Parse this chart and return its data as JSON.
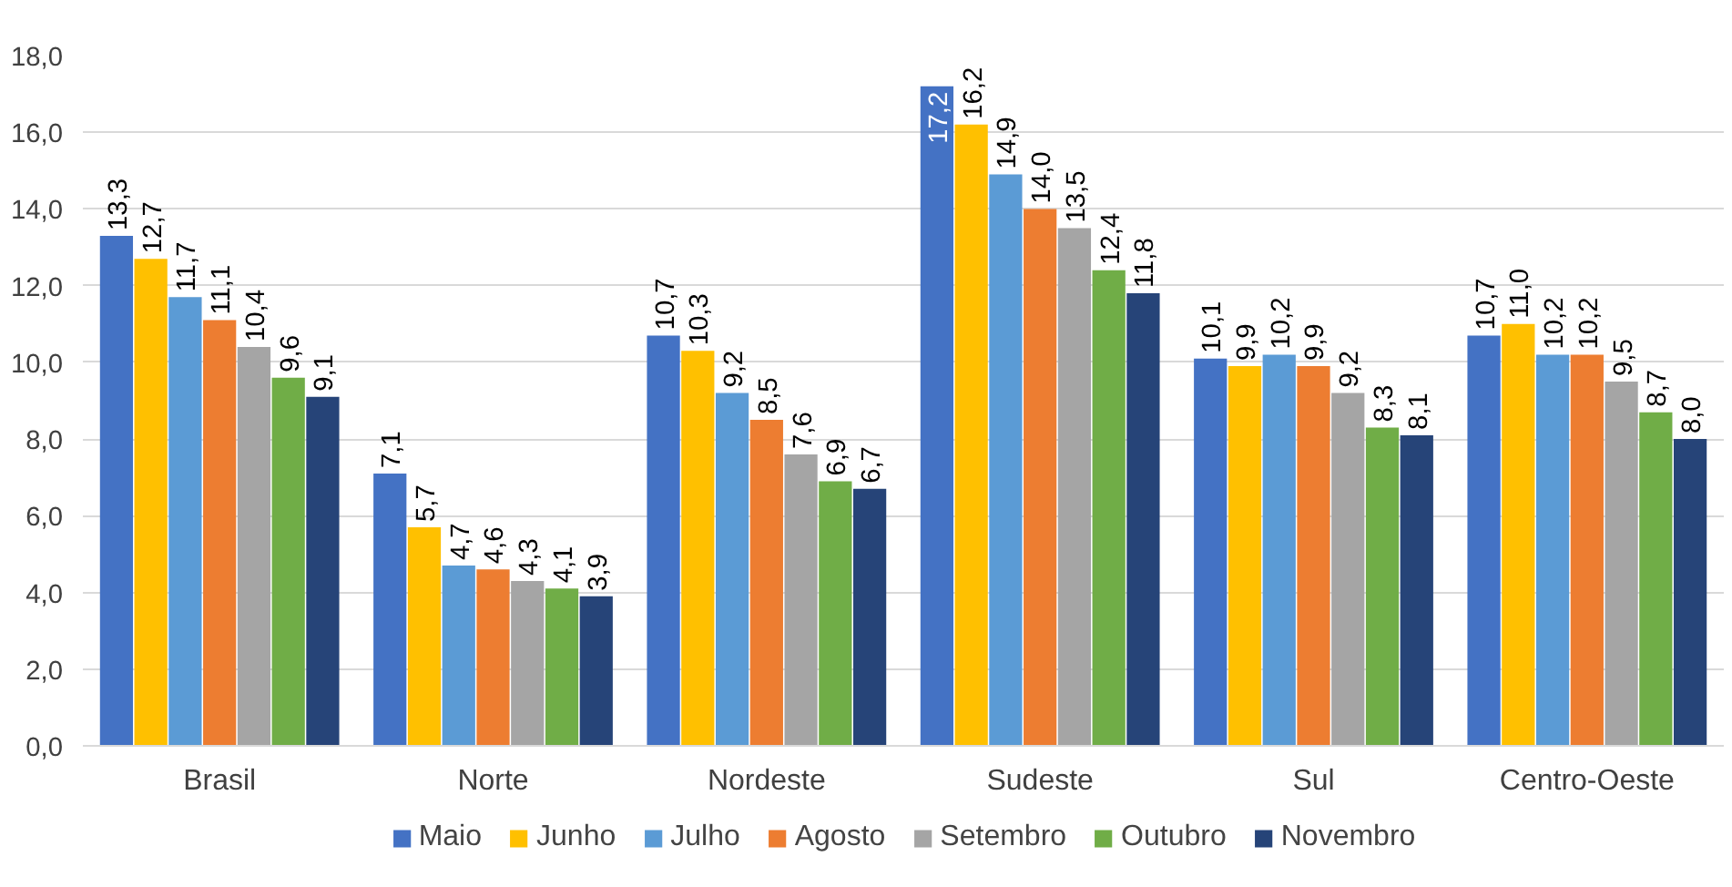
{
  "chart_data": {
    "type": "bar",
    "categories": [
      "Brasil",
      "Norte",
      "Nordeste",
      "Sudeste",
      "Sul",
      "Centro-Oeste"
    ],
    "series": [
      {
        "name": "Maio",
        "color": "#4472c4",
        "values": [
          13.3,
          7.1,
          10.7,
          17.2,
          10.1,
          10.7
        ],
        "value_labels": [
          "13,3",
          "7,1",
          "10,7",
          "17,2",
          "10,1",
          "10,7"
        ]
      },
      {
        "name": "Junho",
        "color": "#ffc000",
        "values": [
          12.7,
          5.7,
          10.3,
          16.2,
          9.9,
          11.0
        ],
        "value_labels": [
          "12,7",
          "5,7",
          "10,3",
          "16,2",
          "9,9",
          "11,0"
        ]
      },
      {
        "name": "Julho",
        "color": "#5b9bd5",
        "values": [
          11.7,
          4.7,
          9.2,
          14.9,
          10.2,
          10.2
        ],
        "value_labels": [
          "11,7",
          "4,7",
          "9,2",
          "14,9",
          "10,2",
          "10,2"
        ]
      },
      {
        "name": "Agosto",
        "color": "#ed7d31",
        "values": [
          11.1,
          4.6,
          8.5,
          14.0,
          9.9,
          10.2
        ],
        "value_labels": [
          "11,1",
          "4,6",
          "8,5",
          "14,0",
          "9,9",
          "10,2"
        ]
      },
      {
        "name": "Setembro",
        "color": "#a5a5a5",
        "values": [
          10.4,
          4.3,
          7.6,
          13.5,
          9.2,
          9.5
        ],
        "value_labels": [
          "10,4",
          "4,3",
          "7,6",
          "13,5",
          "9,2",
          "9,5"
        ]
      },
      {
        "name": "Outubro",
        "color": "#70ad47",
        "values": [
          9.6,
          4.1,
          6.9,
          12.4,
          8.3,
          8.7
        ],
        "value_labels": [
          "9,6",
          "4,1",
          "6,9",
          "12,4",
          "8,3",
          "8,7"
        ]
      },
      {
        "name": "Novembro",
        "color": "#264478",
        "values": [
          9.1,
          3.9,
          6.7,
          11.8,
          8.1,
          8.0
        ],
        "value_labels": [
          "9,1",
          "3,9",
          "6,7",
          "11,8",
          "8,1",
          "8,0"
        ]
      }
    ],
    "ylim": [
      0,
      18
    ],
    "yticks": [
      {
        "value": 0,
        "label": "0,0"
      },
      {
        "value": 2,
        "label": "2,0"
      },
      {
        "value": 4,
        "label": "4,0"
      },
      {
        "value": 6,
        "label": "6,0"
      },
      {
        "value": 8,
        "label": "8,0"
      },
      {
        "value": 10,
        "label": "10,0"
      },
      {
        "value": 12,
        "label": "12,0"
      },
      {
        "value": 14,
        "label": "14,0"
      },
      {
        "value": 16,
        "label": "16,0"
      },
      {
        "value": 18,
        "label": "18,0"
      }
    ],
    "grid": "y",
    "legend": "bottom"
  }
}
